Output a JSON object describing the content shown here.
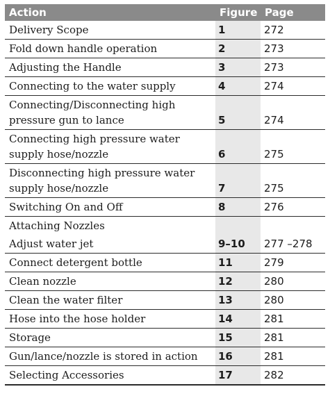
{
  "header": {
    "action": "Action",
    "figure": "Figure",
    "page": "Page"
  },
  "rows": [
    {
      "action": "Delivery Scope",
      "figure": "1",
      "page": "272"
    },
    {
      "action": "Fold down handle operation",
      "figure": "2",
      "page": "273"
    },
    {
      "action": "Adjusting the Handle",
      "figure": "3",
      "page": "273"
    },
    {
      "action": "Connecting to the water supply",
      "figure": "4",
      "page": "274"
    },
    {
      "action": "Connecting/Disconnecting high pressure gun to lance",
      "figure": "5",
      "page": "274"
    },
    {
      "action": "Connecting high pressure water supply hose/nozzle",
      "figure": "6",
      "page": "275"
    },
    {
      "action": "Disconnecting high pressure water supply hose/nozzle",
      "figure": "7",
      "page": "275"
    },
    {
      "action": "Switching On and Off",
      "figure": "8",
      "page": "276"
    },
    {
      "action": "Attaching Nozzles",
      "figure": "",
      "page": ""
    },
    {
      "action": "Adjust water jet",
      "figure": "9–10",
      "page": "277 –278"
    },
    {
      "action": "Connect detergent bottle",
      "figure": "11",
      "page": "279"
    },
    {
      "action": "Clean nozzle",
      "figure": "12",
      "page": "280"
    },
    {
      "action": "Clean the water filter",
      "figure": "13",
      "page": "280"
    },
    {
      "action": "Hose into the hose holder",
      "figure": "14",
      "page": "281"
    },
    {
      "action": "Storage",
      "figure": "15",
      "page": "281"
    },
    {
      "action": "Gun/lance/nozzle is stored in action",
      "figure": "16",
      "page": "281"
    },
    {
      "action": "Selecting Accessories",
      "figure": "17",
      "page": "282"
    }
  ]
}
